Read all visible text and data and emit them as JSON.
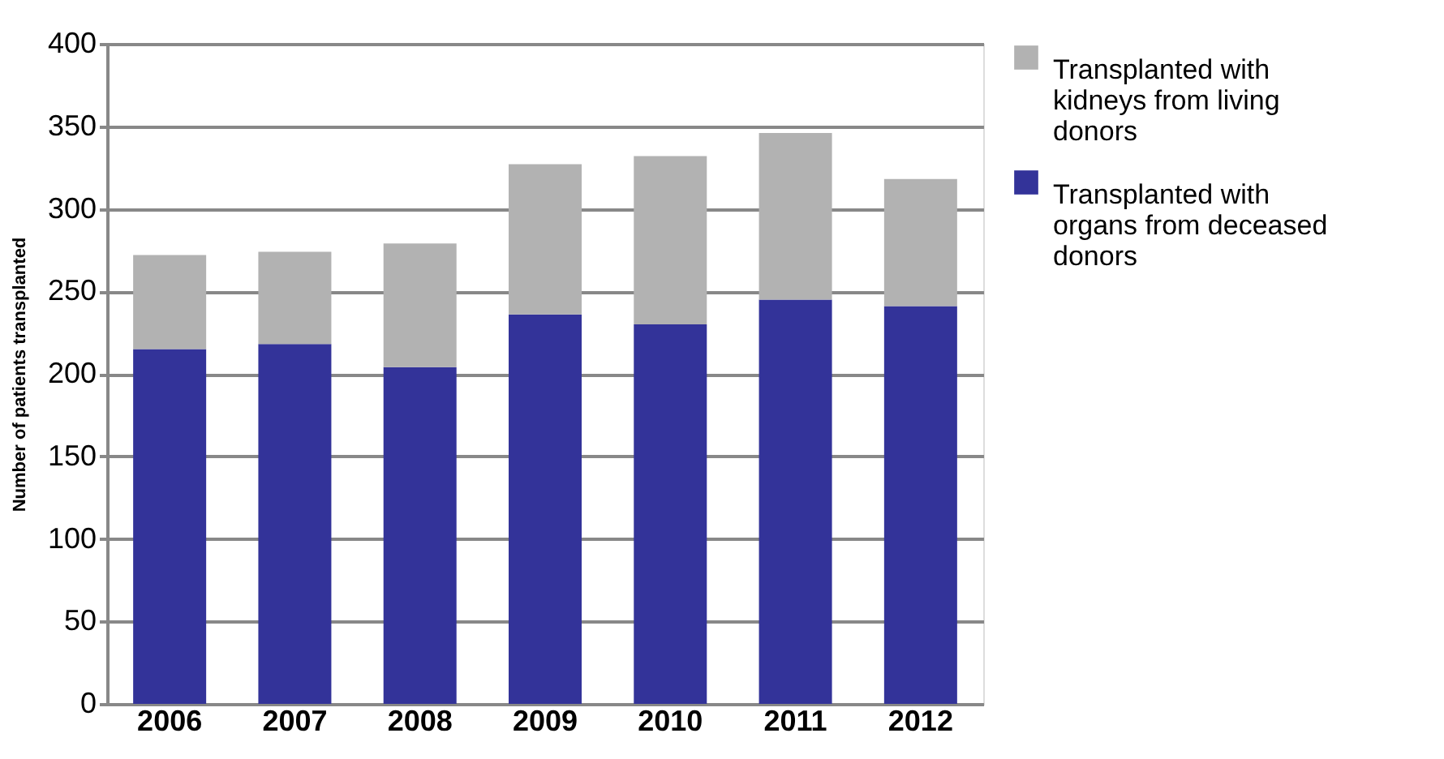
{
  "chart_data": {
    "type": "bar",
    "stacked": true,
    "ylabel": "Number of  patients transplanted",
    "categories": [
      "2006",
      "2007",
      "2008",
      "2009",
      "2010",
      "2011",
      "2012"
    ],
    "series": [
      {
        "name": "Transplanted with organs from deceased donors",
        "color": "#333399",
        "values": [
          215,
          218,
          204,
          236,
          230,
          245,
          241
        ]
      },
      {
        "name": "Transplanted with kidneys from living donors",
        "color": "#b2b2b2",
        "values": [
          57,
          56,
          75,
          91,
          102,
          101,
          77
        ]
      }
    ],
    "ylim": [
      0,
      400
    ],
    "yticks": [
      0,
      50,
      100,
      150,
      200,
      250,
      300,
      350,
      400
    ],
    "grid": "y",
    "legend": "right"
  }
}
